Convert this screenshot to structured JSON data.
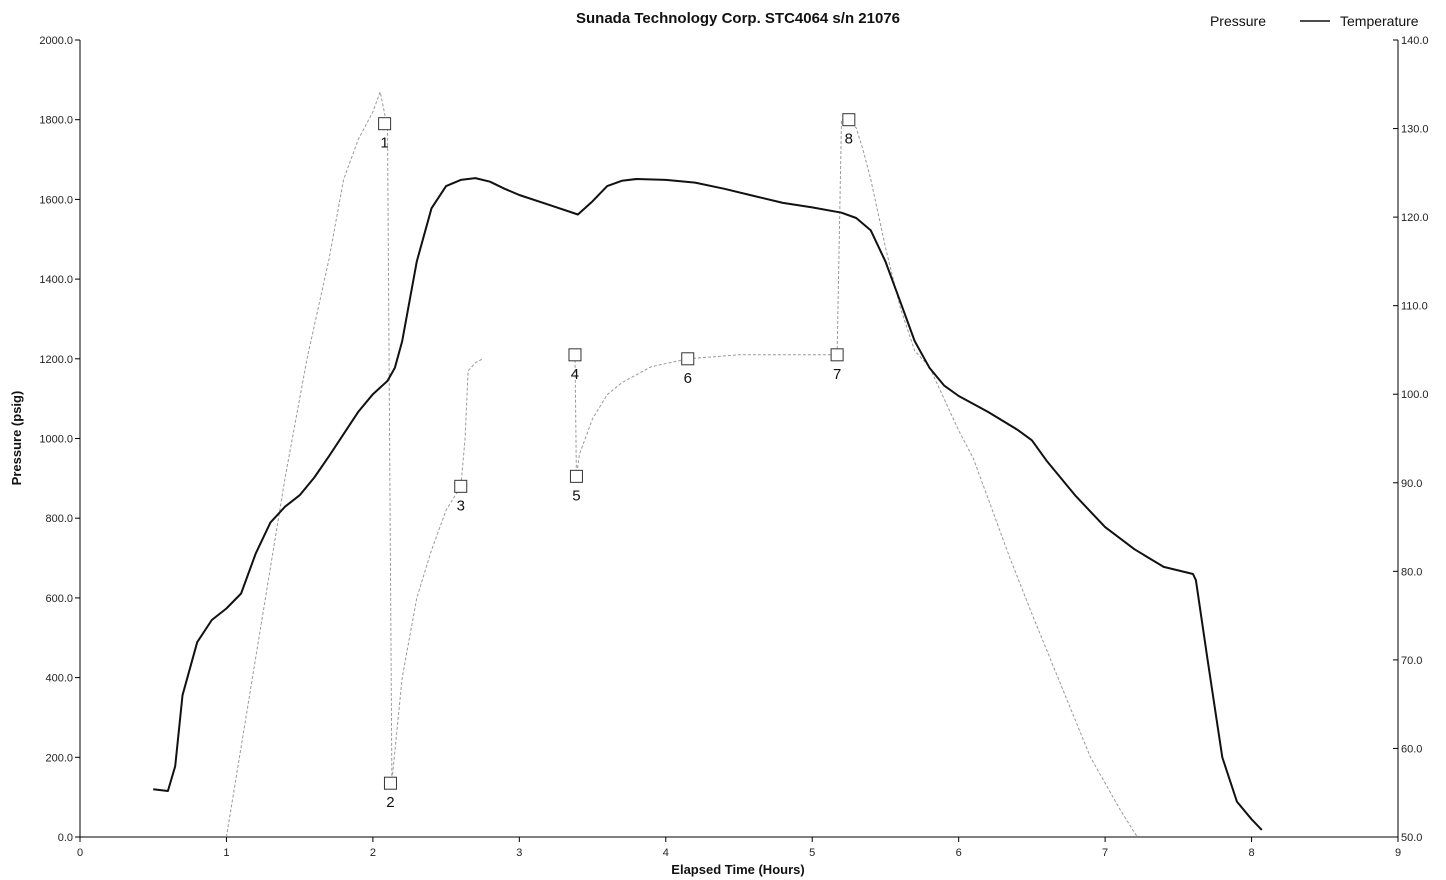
{
  "chart_data": {
    "type": "line",
    "title": "Sunada Technology Corp. STC4064 s/n 21076",
    "xlabel": "Elapsed Time (Hours)",
    "ylabel": "Pressure (psig)",
    "xlim": [
      0,
      9
    ],
    "ylim": [
      0,
      2000
    ],
    "y2lim": [
      50,
      140
    ],
    "x_ticks": [
      "0",
      "1",
      "2",
      "3",
      "4",
      "5",
      "6",
      "7",
      "8",
      "9"
    ],
    "y_ticks": [
      "0.0",
      "200.0",
      "400.0",
      "600.0",
      "800.0",
      "1000.0",
      "1200.0",
      "1400.0",
      "1600.0",
      "1800.0",
      "2000.0"
    ],
    "y2_ticks": [
      "50.0",
      "60.0",
      "70.0",
      "80.0",
      "90.0",
      "100.0",
      "110.0",
      "120.0",
      "130.0",
      "140.0"
    ],
    "grid": false,
    "legend": {
      "placement": "top-right",
      "entries": [
        "Pressure",
        "Temperature"
      ]
    },
    "series": [
      {
        "name": "Pressure",
        "axis": "left",
        "color": "#9a9a9a",
        "x": [
          1.0,
          1.2,
          1.4,
          1.55,
          1.7,
          1.8,
          1.9,
          2.0,
          2.05,
          2.1,
          2.13,
          2.2,
          2.3,
          2.4,
          2.5,
          2.6,
          2.63,
          2.65,
          2.7,
          2.75
        ],
        "y": [
          0,
          450,
          900,
          1200,
          1450,
          1650,
          1750,
          1820,
          1870,
          1780,
          140,
          400,
          600,
          720,
          820,
          880,
          1000,
          1170,
          1190,
          1200
        ]
      },
      {
        "name": "Pressure",
        "axis": "left",
        "color": "#9a9a9a",
        "x": [
          3.38,
          3.39,
          3.41,
          3.5,
          3.6,
          3.7,
          3.8,
          3.9,
          4.15,
          4.5,
          4.8,
          5.17,
          5.2,
          5.22,
          5.25,
          5.3,
          5.35,
          5.4,
          5.5,
          5.6,
          5.7,
          5.8,
          5.9,
          6.0,
          6.1,
          6.2,
          6.35,
          6.5,
          6.7,
          6.9,
          7.1,
          7.22
        ],
        "y": [
          1210,
          905,
          960,
          1050,
          1110,
          1140,
          1160,
          1180,
          1200,
          1210,
          1210,
          1210,
          1800,
          1800,
          1790,
          1780,
          1720,
          1650,
          1480,
          1330,
          1220,
          1180,
          1100,
          1020,
          950,
          850,
          700,
          560,
          380,
          200,
          70,
          0
        ]
      },
      {
        "name": "Temperature",
        "axis": "right",
        "color": "#111111",
        "x": [
          0.5,
          0.6,
          0.65,
          0.7,
          0.8,
          0.9,
          1.0,
          1.1,
          1.2,
          1.3,
          1.4,
          1.5,
          1.6,
          1.7,
          1.8,
          1.9,
          2.0,
          2.1,
          2.15,
          2.2,
          2.3,
          2.4,
          2.5,
          2.6,
          2.7,
          2.8,
          2.9,
          3.0,
          3.2,
          3.4,
          3.5,
          3.6,
          3.7,
          3.8,
          4.0,
          4.2,
          4.4,
          4.6,
          4.8,
          5.0,
          5.2,
          5.3,
          5.4,
          5.5,
          5.6,
          5.7,
          5.8,
          5.9,
          6.0,
          6.2,
          6.4,
          6.5,
          6.6,
          6.8,
          7.0,
          7.2,
          7.4,
          7.6,
          7.62,
          7.7,
          7.8,
          7.9,
          8.0,
          8.07
        ],
        "y": [
          55.4,
          55.2,
          58.0,
          66.0,
          72.0,
          74.5,
          75.8,
          77.5,
          82.0,
          85.5,
          87.3,
          88.6,
          90.6,
          93.0,
          95.5,
          98.0,
          100.0,
          101.5,
          103.0,
          106.0,
          115.0,
          121.0,
          123.5,
          124.2,
          124.4,
          124.0,
          123.2,
          122.5,
          121.4,
          120.3,
          121.8,
          123.5,
          124.1,
          124.3,
          124.2,
          123.9,
          123.2,
          122.4,
          121.6,
          121.1,
          120.5,
          119.9,
          118.5,
          115.0,
          110.5,
          106.0,
          103.0,
          101.0,
          99.8,
          98.0,
          96.0,
          94.8,
          92.5,
          88.5,
          85.0,
          82.5,
          80.5,
          79.7,
          79.0,
          70.0,
          59.0,
          54.0,
          52.0,
          50.8
        ]
      }
    ],
    "annotations": [
      {
        "label": "1",
        "x": 2.08,
        "y": 1790
      },
      {
        "label": "2",
        "x": 2.12,
        "y": 135
      },
      {
        "label": "3",
        "x": 2.6,
        "y": 880
      },
      {
        "label": "4",
        "x": 3.38,
        "y": 1210
      },
      {
        "label": "5",
        "x": 3.39,
        "y": 905
      },
      {
        "label": "6",
        "x": 4.15,
        "y": 1200
      },
      {
        "label": "7",
        "x": 5.17,
        "y": 1210
      },
      {
        "label": "8",
        "x": 5.25,
        "y": 1800
      }
    ]
  }
}
